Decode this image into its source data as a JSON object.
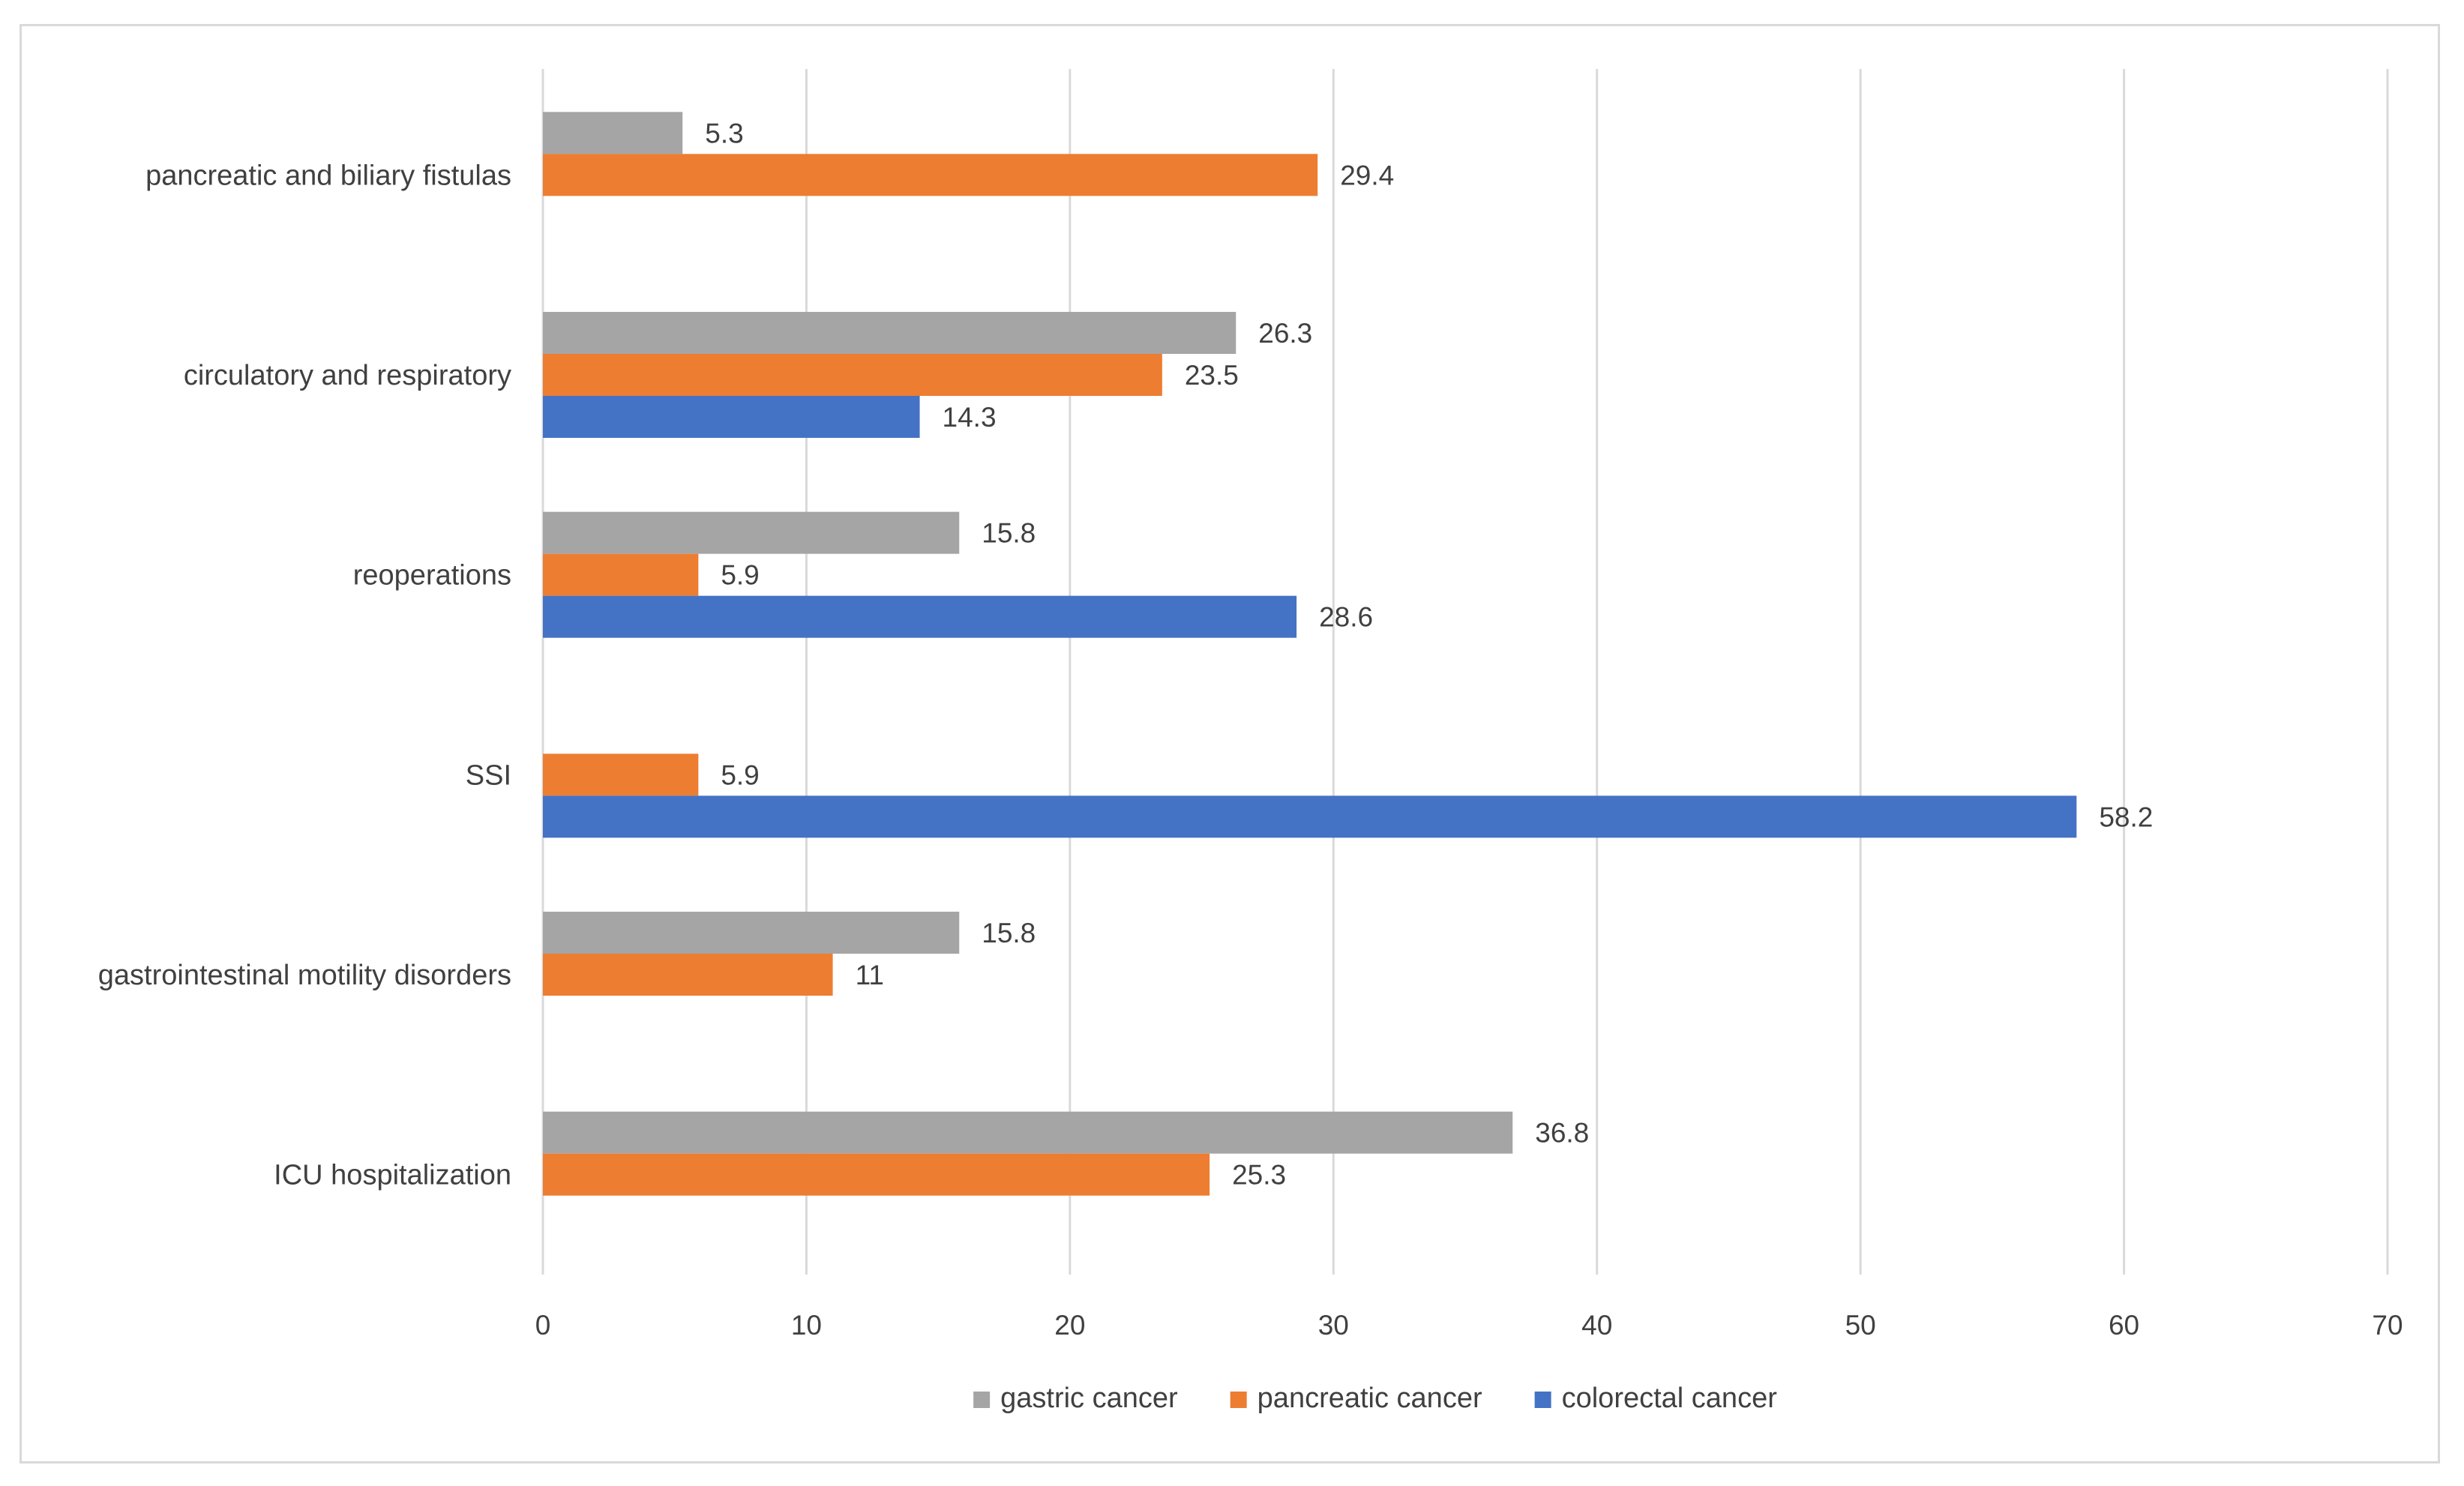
{
  "chart_data": {
    "type": "bar",
    "orientation": "horizontal",
    "title": "",
    "xlabel": "",
    "ylabel": "",
    "xlim": [
      0,
      70
    ],
    "x_ticks": [
      "0",
      "10",
      "20",
      "30",
      "40",
      "50",
      "60",
      "70"
    ],
    "x_tick_values": [
      0,
      10,
      20,
      30,
      40,
      50,
      60,
      70
    ],
    "grid": true,
    "legend_position": "bottom",
    "categories": [
      "pancreatic and biliary fistulas",
      "circulatory and respiratory",
      "reoperations",
      "SSI",
      "gastrointestinal motility disorders",
      "ICU hospitalization"
    ],
    "series": [
      {
        "name": "gastric cancer",
        "color": "#a5a5a5",
        "values": [
          5.3,
          26.3,
          15.8,
          null,
          15.8,
          36.8
        ],
        "labels": [
          "5.3",
          "26.3",
          "15.8",
          null,
          "15.8",
          "36.8"
        ]
      },
      {
        "name": "pancreatic cancer",
        "color": "#ed7d31",
        "values": [
          29.4,
          23.5,
          5.9,
          5.9,
          11,
          25.3
        ],
        "labels": [
          "29.4",
          "23.5",
          "5.9",
          "5.9",
          "11",
          "25.3"
        ]
      },
      {
        "name": "colorectal cancer",
        "color": "#4472c4",
        "values": [
          null,
          14.3,
          28.6,
          58.2,
          null,
          null
        ],
        "labels": [
          null,
          "14.3",
          "28.6",
          "58.2",
          null,
          null
        ]
      }
    ],
    "colors": {
      "gridline": "#d9d9d9",
      "axis": "#d9d9d9",
      "text": "#404040",
      "border": "#d9d9d9"
    }
  }
}
